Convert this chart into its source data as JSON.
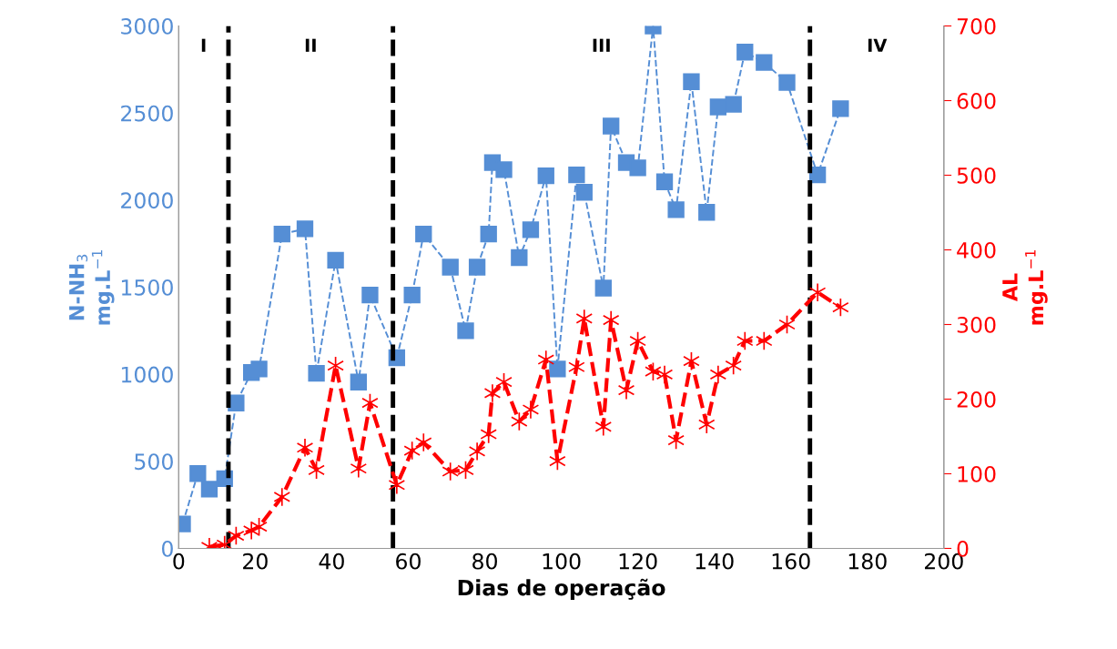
{
  "chart_data": {
    "type": "line",
    "xlabel": "Dias de operação",
    "ylabel": "N-NH$_{3}$\nmg.L$^{−1}$",
    "y2label": "AL\nmg.L$^{−1}$",
    "xlim": [
      0,
      200
    ],
    "xticks": [
      0,
      20,
      40,
      60,
      80,
      100,
      120,
      140,
      160,
      180,
      200
    ],
    "ylim": [
      0,
      3000
    ],
    "yticks": [
      0,
      500,
      1000,
      1500,
      2000,
      2500,
      3000
    ],
    "y2lim": [
      0,
      700
    ],
    "y2ticks": [
      0,
      100,
      200,
      300,
      400,
      500,
      600,
      700
    ],
    "grid": false,
    "legend": false,
    "series": [
      {
        "color": "#558ed5",
        "marker": "square",
        "line_style": "dashed",
        "x": [
          1,
          5,
          8,
          12,
          15,
          19,
          21,
          27,
          33,
          36,
          41,
          47,
          50,
          57,
          61,
          64,
          71,
          75,
          78,
          81,
          82,
          85,
          89,
          92,
          96,
          99,
          104,
          106,
          111,
          113,
          117,
          120,
          124,
          127,
          130,
          134,
          138,
          141,
          145,
          148,
          153,
          159,
          167,
          173
        ],
        "values": [
          140,
          430,
          340,
          400,
          835,
          1010,
          1030,
          1805,
          1835,
          1005,
          1655,
          955,
          1455,
          1095,
          1455,
          1805,
          1615,
          1250,
          1615,
          1805,
          2215,
          2175,
          1670,
          1830,
          2140,
          1030,
          2145,
          2045,
          1495,
          2425,
          2215,
          2185,
          3000,
          2105,
          1945,
          2680,
          1930,
          2535,
          2550,
          2850,
          2790,
          2675,
          2145,
          2525
        ]
      },
      {
        "color": "#ff0000",
        "marker": "cross",
        "line_style": "dashed",
        "axis": "y2",
        "x": [
          8,
          12,
          15,
          19,
          21,
          27,
          33,
          36,
          41,
          47,
          50,
          57,
          61,
          64,
          71,
          75,
          78,
          81,
          82,
          85,
          89,
          92,
          96,
          99,
          104,
          106,
          111,
          113,
          117,
          120,
          124,
          127,
          130,
          134,
          138,
          141,
          145,
          148,
          153,
          159,
          167,
          173
        ],
        "values": [
          2,
          5,
          17,
          24,
          29,
          69,
          135,
          105,
          245,
          107,
          195,
          85,
          131,
          142,
          103,
          105,
          130,
          153,
          208,
          223,
          170,
          186,
          253,
          117,
          243,
          308,
          163,
          306,
          212,
          278,
          237,
          233,
          145,
          251,
          166,
          233,
          245,
          278,
          278,
          300,
          343,
          323
        ]
      }
    ],
    "ref_lines": [
      {
        "axis": "x",
        "value": 13,
        "color": "#000000",
        "line_style": "dashed"
      },
      {
        "axis": "x",
        "value": 56,
        "color": "#000000",
        "line_style": "dashed"
      },
      {
        "axis": "x",
        "value": 165,
        "color": "#000000",
        "line_style": "dashed"
      }
    ],
    "annotations": [
      "I",
      "II",
      "III",
      "IV"
    ]
  }
}
